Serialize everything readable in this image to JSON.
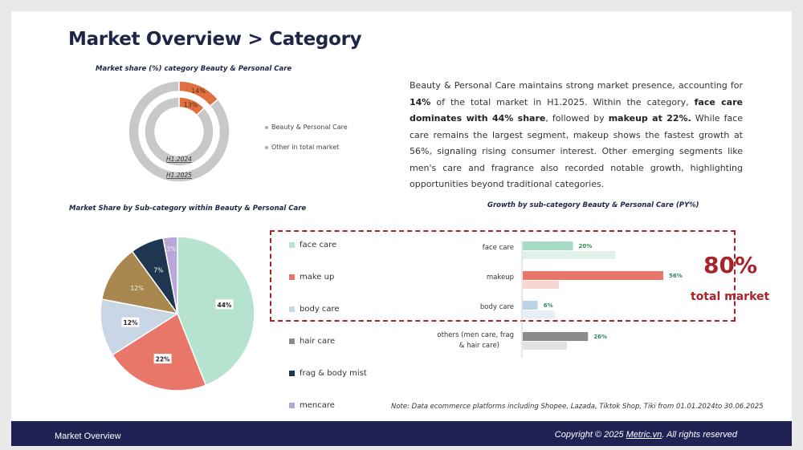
{
  "title": "Market Overview > Category",
  "donut": {
    "subtitle": "Market share (%) category Beauty & Personal Care",
    "legend": [
      "Beauty & Personal Care",
      "Other in total market"
    ],
    "rings": [
      {
        "label": "H1.2024",
        "value_label": "13%",
        "value": 13
      },
      {
        "label": "H1.2025",
        "value_label": "14%",
        "value": 14
      }
    ],
    "colors": {
      "highlight": "#e07040",
      "other": "#c8c8c8"
    }
  },
  "paragraph": {
    "p1": "Beauty & Personal Care maintains strong market presence, accounting for ",
    "b1": "14%",
    "p2": " of the total market in H1.2025. Within the category, ",
    "b2": "face care dominates with 44% share",
    "p3": ", followed by ",
    "b3": "makeup at 22%.",
    "p4": " While face care remains the largest segment, makeup shows the fastest growth at 56%, signaling rising consumer interest. Other emerging segments like men's care and fragrance also recorded notable growth, highlighting opportunities beyond traditional categories."
  },
  "pie": {
    "subtitle": "Market Share by Sub-category within Beauty & Personal Care",
    "legend": [
      "face care",
      "make up",
      "body care",
      "hair care",
      "frag & body mist",
      "mencare"
    ]
  },
  "growth": {
    "subtitle": "Growth by sub-category Beauty & Personal Care  (PY%)",
    "highlight_value": "80%",
    "highlight_label": "total market"
  },
  "note": "Note: Data ecommerce platforms including Shopee, Lazada, Tiktok Shop, Tiki from 01.01.2024to 30.06.2025",
  "footer": {
    "left": "Market Overview",
    "right_prefix": "Copyright © 2025 ",
    "right_link": "Metric.vn",
    "right_suffix": ". All rights reserved"
  },
  "chart_data": [
    {
      "type": "pie",
      "categories": [
        "face care",
        "make up",
        "body care",
        "hair care",
        "frag & body mist",
        "mencare"
      ],
      "values": [
        44,
        22,
        12,
        12,
        7,
        3
      ],
      "labels": [
        "44%",
        "22%",
        "12%",
        "12%",
        "7%",
        "3%"
      ],
      "colors": [
        "#b6e3cf",
        "#e8776a",
        "#c9d6e6",
        "#a8884e",
        "#1f3650",
        "#b9a6da"
      ]
    },
    {
      "type": "bar",
      "orientation": "horizontal",
      "categories": [
        "face care",
        "makeup",
        "body care",
        "others (men care, frag & hair care)"
      ],
      "values": [
        20,
        56,
        6,
        26
      ],
      "value_labels": [
        "20%",
        "56%",
        "6%",
        "26%"
      ],
      "colors": [
        "#a6dcc4",
        "#e8776a",
        "#bcd3e6",
        "#8a8a8a"
      ],
      "shadow_colors": [
        "#dff1e9",
        "#f8d7d3",
        "#e7eef6",
        "#e3e3e3"
      ]
    }
  ]
}
